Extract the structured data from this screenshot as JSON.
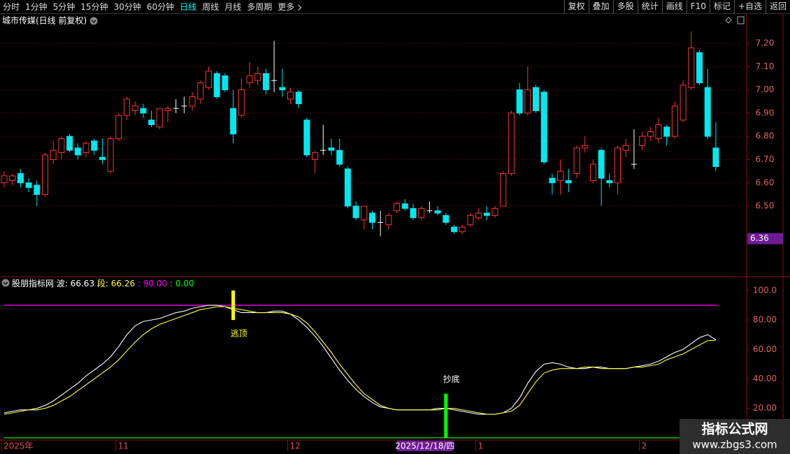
{
  "toolbar": {
    "left": [
      "分时",
      "1分钟",
      "5分钟",
      "15分钟",
      "30分钟",
      "60分钟",
      "日线",
      "周线",
      "月线",
      "多周期",
      "更多"
    ],
    "active": 6,
    "right": [
      "复权",
      "叠加",
      "多股",
      "统计",
      "画线",
      "F10",
      "标记",
      "+自选",
      "返回"
    ]
  },
  "watermark": {
    "title": "指标公式网",
    "url": "www.zbgs3.com"
  },
  "chart_data": [
    {
      "type": "candlestick",
      "title": "城市传媒(日线 前复权)",
      "up_color": "#ff3232",
      "down_color": "#00e8f0",
      "flat_color": "#ffffff",
      "ylim": [
        6.2,
        7.32
      ],
      "yticks": [
        {
          "value": 7.2,
          "label": "7.20"
        },
        {
          "value": 7.1,
          "label": "7.10"
        },
        {
          "value": 7.0,
          "label": "7.00"
        },
        {
          "value": 6.9,
          "label": "6.90"
        },
        {
          "value": 6.8,
          "label": "6.80"
        },
        {
          "value": 6.7,
          "label": "6.70"
        },
        {
          "value": 6.6,
          "label": "6.60"
        },
        {
          "value": 6.5,
          "label": "6.50"
        }
      ],
      "grid": true,
      "price_marker": 6.36,
      "categories": [
        "2025年",
        null,
        null,
        null,
        null,
        null,
        null,
        null,
        null,
        null,
        null,
        null,
        null,
        null,
        "11",
        null,
        null,
        null,
        null,
        null,
        null,
        null,
        null,
        null,
        null,
        null,
        null,
        null,
        null,
        null,
        null,
        null,
        null,
        null,
        null,
        "12",
        null,
        null,
        null,
        null,
        null,
        null,
        null,
        null,
        null,
        null,
        null,
        null,
        null,
        null,
        null,
        null,
        null,
        null,
        "2025/12/18/四",
        null,
        null,
        null,
        "1",
        null,
        null,
        null,
        null,
        null,
        null,
        null,
        null,
        null,
        null,
        null,
        null,
        null,
        null,
        null,
        null,
        null,
        null,
        null,
        "2",
        null,
        null,
        null,
        null,
        null,
        null,
        null,
        null,
        null
      ],
      "highlight": 54,
      "ohlc": [
        [
          6.6,
          6.65,
          6.58,
          6.63
        ],
        [
          6.61,
          6.64,
          6.59,
          6.63
        ],
        [
          6.64,
          6.66,
          6.58,
          6.6
        ],
        [
          6.6,
          6.62,
          6.56,
          6.58
        ],
        [
          6.59,
          6.61,
          6.5,
          6.55
        ],
        [
          6.55,
          6.73,
          6.54,
          6.72
        ],
        [
          6.7,
          6.78,
          6.68,
          6.74
        ],
        [
          6.73,
          6.8,
          6.7,
          6.79
        ],
        [
          6.8,
          6.81,
          6.73,
          6.74
        ],
        [
          6.75,
          6.77,
          6.7,
          6.72
        ],
        [
          6.73,
          6.78,
          6.71,
          6.77
        ],
        [
          6.78,
          6.79,
          6.72,
          6.74
        ],
        [
          6.71,
          6.79,
          6.68,
          6.7
        ],
        [
          6.65,
          6.8,
          6.64,
          6.79
        ],
        [
          6.79,
          6.9,
          6.78,
          6.89
        ],
        [
          6.89,
          6.97,
          6.87,
          6.96
        ],
        [
          6.91,
          6.95,
          6.89,
          6.93
        ],
        [
          6.92,
          6.94,
          6.88,
          6.9
        ],
        [
          6.87,
          6.91,
          6.84,
          6.85
        ],
        [
          6.84,
          6.92,
          6.83,
          6.92
        ],
        [
          6.91,
          6.93,
          6.86,
          6.92
        ],
        [
          6.92,
          6.96,
          6.9,
          6.92
        ],
        [
          6.93,
          6.97,
          6.9,
          6.93
        ],
        [
          6.93,
          6.99,
          6.91,
          6.97
        ],
        [
          6.96,
          7.04,
          6.94,
          7.03
        ],
        [
          7.01,
          7.1,
          7.0,
          7.08
        ],
        [
          7.07,
          7.08,
          6.96,
          6.97
        ],
        [
          7.06,
          7.07,
          6.99,
          7.0
        ],
        [
          6.92,
          7.0,
          6.77,
          6.81
        ],
        [
          6.89,
          7.05,
          6.88,
          7.0
        ],
        [
          7.03,
          7.12,
          7.01,
          7.06
        ],
        [
          7.04,
          7.1,
          7.02,
          7.07
        ],
        [
          7.07,
          7.09,
          6.98,
          7.0
        ],
        [
          7.04,
          7.21,
          6.99,
          7.04
        ],
        [
          7.01,
          7.09,
          6.97,
          7.0
        ],
        [
          6.96,
          7.01,
          6.94,
          6.99
        ],
        [
          6.99,
          7.0,
          6.92,
          6.94
        ],
        [
          6.87,
          6.88,
          6.71,
          6.72
        ],
        [
          6.7,
          6.74,
          6.64,
          6.73
        ],
        [
          6.74,
          6.85,
          6.72,
          6.74
        ],
        [
          6.75,
          6.79,
          6.72,
          6.74
        ],
        [
          6.74,
          6.79,
          6.67,
          6.68
        ],
        [
          6.66,
          6.67,
          6.49,
          6.5
        ],
        [
          6.5,
          6.52,
          6.44,
          6.45
        ],
        [
          6.44,
          6.5,
          6.4,
          6.5
        ],
        [
          6.47,
          6.48,
          6.4,
          6.43
        ],
        [
          6.43,
          6.48,
          6.37,
          6.43
        ],
        [
          6.42,
          6.47,
          6.4,
          6.46
        ],
        [
          6.48,
          6.52,
          6.47,
          6.51
        ],
        [
          6.51,
          6.53,
          6.48,
          6.49
        ],
        [
          6.49,
          6.51,
          6.44,
          6.45
        ],
        [
          6.45,
          6.5,
          6.44,
          6.49
        ],
        [
          6.48,
          6.52,
          6.47,
          6.48
        ],
        [
          6.48,
          6.5,
          6.46,
          6.47
        ],
        [
          6.46,
          6.47,
          6.42,
          6.43
        ],
        [
          6.41,
          6.42,
          6.38,
          6.39
        ],
        [
          6.39,
          6.42,
          6.38,
          6.41
        ],
        [
          6.42,
          6.47,
          6.41,
          6.46
        ],
        [
          6.45,
          6.49,
          6.44,
          6.47
        ],
        [
          6.47,
          6.5,
          6.44,
          6.46
        ],
        [
          6.46,
          6.5,
          6.45,
          6.49
        ],
        [
          6.5,
          6.65,
          6.5,
          6.64
        ],
        [
          6.64,
          6.91,
          6.63,
          6.9
        ],
        [
          7.0,
          7.03,
          6.89,
          6.9
        ],
        [
          6.9,
          7.1,
          6.89,
          7.0
        ],
        [
          7.01,
          7.02,
          6.9,
          6.91
        ],
        [
          6.99,
          7.0,
          6.68,
          6.69
        ],
        [
          6.62,
          6.64,
          6.55,
          6.6
        ],
        [
          6.61,
          6.7,
          6.55,
          6.65
        ],
        [
          6.61,
          6.66,
          6.56,
          6.6
        ],
        [
          6.64,
          6.76,
          6.62,
          6.75
        ],
        [
          6.75,
          6.8,
          6.73,
          6.76
        ],
        [
          6.61,
          6.7,
          6.6,
          6.68
        ],
        [
          6.74,
          6.75,
          6.5,
          6.62
        ],
        [
          6.61,
          6.64,
          6.58,
          6.6
        ],
        [
          6.6,
          6.76,
          6.55,
          6.75
        ],
        [
          6.74,
          6.79,
          6.71,
          6.76
        ],
        [
          6.68,
          6.83,
          6.66,
          6.68
        ],
        [
          6.76,
          6.82,
          6.74,
          6.8
        ],
        [
          6.8,
          6.84,
          6.78,
          6.82
        ],
        [
          6.79,
          6.88,
          6.77,
          6.85
        ],
        [
          6.84,
          6.85,
          6.76,
          6.8
        ],
        [
          6.8,
          6.95,
          6.79,
          6.93
        ],
        [
          6.87,
          7.04,
          6.86,
          7.02
        ],
        [
          7.01,
          7.25,
          7.0,
          7.18
        ],
        [
          7.16,
          7.17,
          7.02,
          7.03
        ],
        [
          7.01,
          7.09,
          6.79,
          6.8
        ],
        [
          6.75,
          6.86,
          6.65,
          6.67
        ]
      ]
    },
    {
      "type": "line",
      "title": "股朋指标网",
      "ylim": [
        -1.5,
        108.5
      ],
      "yticks": [
        {
          "value": 100,
          "label": "100.0"
        },
        {
          "value": 80,
          "label": "80.00"
        },
        {
          "value": 60,
          "label": "60.00"
        },
        {
          "value": 40,
          "label": "40.00"
        },
        {
          "value": 20,
          "label": "20.00"
        }
      ],
      "series": [
        {
          "name": "波",
          "color": "#ffffff",
          "values": [
            17,
            18,
            19,
            19,
            20,
            22,
            25,
            29,
            33,
            37,
            42,
            46,
            50,
            55,
            62,
            70,
            76,
            79,
            80,
            81,
            83,
            85,
            86,
            88,
            89,
            90,
            90,
            89,
            87,
            85,
            85,
            85,
            85,
            86,
            86,
            84,
            80,
            75,
            69,
            62,
            54,
            46,
            39,
            33,
            28,
            24,
            21,
            20,
            19,
            19,
            19,
            19,
            19,
            20,
            20,
            19,
            18,
            17,
            16,
            16,
            16,
            17,
            20,
            27,
            37,
            45,
            50,
            51,
            50,
            48,
            47,
            47,
            48,
            48,
            47,
            47,
            47,
            48,
            49,
            50,
            52,
            55,
            58,
            60,
            64,
            68,
            70,
            66.63
          ]
        },
        {
          "name": "段",
          "color": "#ffff40",
          "values": [
            16,
            17,
            18,
            19,
            19,
            20,
            22,
            25,
            28,
            32,
            36,
            40,
            44,
            48,
            53,
            59,
            65,
            70,
            74,
            77,
            79,
            81,
            83,
            85,
            87,
            88,
            89,
            89,
            88,
            87,
            86,
            85,
            85,
            85,
            85,
            84,
            82,
            78,
            72,
            65,
            58,
            50,
            43,
            36,
            30,
            26,
            22,
            20,
            19,
            19,
            19,
            19,
            19,
            19,
            20,
            20,
            19,
            18,
            17,
            16,
            16,
            17,
            18,
            22,
            30,
            38,
            44,
            46,
            47,
            47,
            47,
            48,
            48,
            47,
            47,
            47,
            47,
            48,
            48,
            49,
            50,
            53,
            55,
            57,
            60,
            63,
            66,
            66.26
          ]
        }
      ],
      "ref_lines": [
        {
          "value": 90,
          "label": "90.00",
          "color": "#ff00ff"
        },
        {
          "value": 0,
          "label": "0.00",
          "color": "#00ff00"
        }
      ],
      "signals": [
        {
          "index": 28,
          "from": 80,
          "to": 100,
          "label": "逃顶",
          "color": "#ffff00"
        },
        {
          "index": 54,
          "from": 0,
          "to": 30,
          "label": "抄底",
          "color": "#00ff00"
        }
      ]
    }
  ]
}
